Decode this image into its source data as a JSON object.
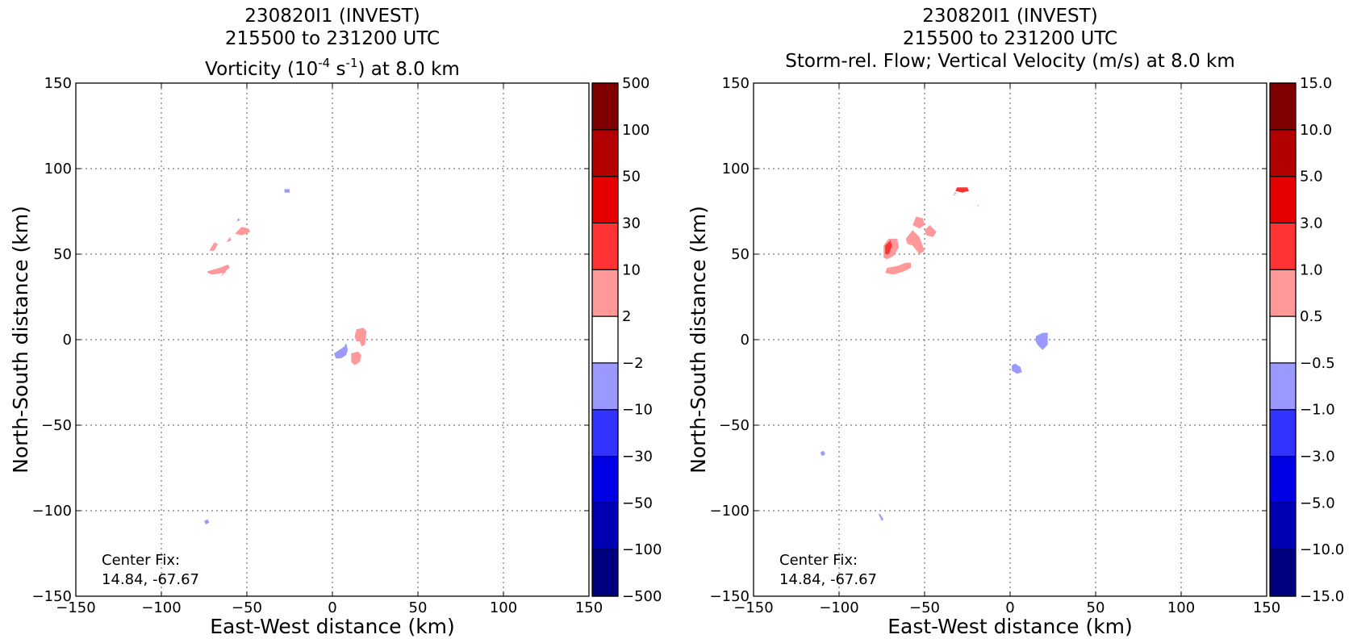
{
  "chart_data": [
    {
      "type": "heatmap",
      "title_lines": [
        "230820I1 (INVEST)",
        "215500 to 231200 UTC"
      ],
      "title_var": {
        "pre": "Vorticity (10",
        "exp": "-4",
        "mid": " s",
        "exp2": "-1",
        "post": ") at 8.0 km"
      },
      "xlabel": "East-West distance (km)",
      "ylabel": "North-South distance (km)",
      "xlim": [
        -150,
        150
      ],
      "ylim": [
        -150,
        150
      ],
      "xticks": [
        -150,
        -100,
        -50,
        0,
        50,
        100,
        150
      ],
      "yticks": [
        -150,
        -100,
        -50,
        0,
        50,
        100,
        150
      ],
      "xtick_labels": [
        "−150",
        "−100",
        "−50",
        "0",
        "50",
        "100",
        "150"
      ],
      "ytick_labels": [
        "−150",
        "−100",
        "−50",
        "0",
        "50",
        "100",
        "150"
      ],
      "grid": true,
      "colorbar": {
        "levels": [
          -500,
          -100,
          -50,
          -30,
          -10,
          -2,
          2,
          10,
          30,
          50,
          100,
          500
        ],
        "labels": [
          "−500",
          "−100",
          "−50",
          "−30",
          "−10",
          "−2",
          "2",
          "10",
          "30",
          "50",
          "100",
          "500"
        ],
        "colors": [
          "#00007f",
          "#0000b2",
          "#0000e5",
          "#3333ff",
          "#9999ff",
          "#ffffff",
          "#ff9999",
          "#ff3333",
          "#e50000",
          "#b20000",
          "#7f0000"
        ]
      },
      "annotation": [
        "Center Fix:",
        "14.84, -67.67"
      ],
      "regions": [
        {
          "level": 6,
          "points": [
            [
              -73,
              40
            ],
            [
              -66,
              42
            ],
            [
              -61,
              44
            ],
            [
              -60,
              42
            ],
            [
              -64,
              39
            ],
            [
              -70,
              38
            ],
            [
              -73,
              39
            ]
          ]
        },
        {
          "level": 6,
          "points": [
            [
              -65,
              37
            ],
            [
              -62,
              40
            ],
            [
              -63,
              41
            ]
          ]
        },
        {
          "level": 6,
          "points": [
            [
              -57,
              62
            ],
            [
              -53,
              66
            ],
            [
              -49,
              65
            ],
            [
              -48,
              63
            ],
            [
              -53,
              61
            ]
          ]
        },
        {
          "level": 6,
          "points": [
            [
              -72,
              52
            ],
            [
              -69,
              57
            ],
            [
              -67,
              56
            ],
            [
              -69,
              52
            ]
          ]
        },
        {
          "level": 6,
          "points": [
            [
              -62,
              57
            ],
            [
              -60,
              60
            ],
            [
              -59,
              58
            ]
          ]
        },
        {
          "level": 6,
          "points": [
            [
              13,
              2
            ],
            [
              14,
              6
            ],
            [
              18,
              7
            ],
            [
              20,
              5
            ],
            [
              19,
              -3
            ],
            [
              17,
              -4
            ],
            [
              16,
              -1
            ],
            [
              14,
              -1
            ]
          ]
        },
        {
          "level": 6,
          "points": [
            [
              11,
              -8
            ],
            [
              11,
              -13
            ],
            [
              13,
              -15
            ],
            [
              16,
              -13
            ],
            [
              17,
              -9
            ],
            [
              15,
              -7
            ]
          ]
        },
        {
          "level": 4,
          "points": [
            [
              2,
              -11
            ],
            [
              1,
              -8
            ],
            [
              4,
              -6
            ],
            [
              7,
              -4
            ],
            [
              8,
              -2
            ],
            [
              9,
              -6
            ],
            [
              8,
              -9
            ],
            [
              5,
              -11
            ]
          ]
        },
        {
          "level": 4,
          "points": [
            [
              -28,
              86
            ],
            [
              -28,
              88
            ],
            [
              -25,
              88
            ],
            [
              -25,
              86
            ]
          ]
        },
        {
          "level": 4,
          "points": [
            [
              -56,
              69
            ],
            [
              -55,
              71
            ],
            [
              -54,
              70
            ]
          ]
        },
        {
          "level": 4,
          "points": [
            [
              -75,
              -106
            ],
            [
              -74,
              -108
            ],
            [
              -72,
              -107
            ],
            [
              -73,
              -105
            ]
          ]
        }
      ]
    },
    {
      "type": "heatmap",
      "title_lines": [
        "230820I1 (INVEST)",
        "215500 to 231200 UTC",
        "Storm-rel. Flow; Vertical Velocity (m/s) at 8.0 km"
      ],
      "xlabel": "East-West distance (km)",
      "ylabel": "North-South distance (km)",
      "xlim": [
        -150,
        150
      ],
      "ylim": [
        -150,
        150
      ],
      "xticks": [
        -150,
        -100,
        -50,
        0,
        50,
        100,
        150
      ],
      "yticks": [
        -150,
        -100,
        -50,
        0,
        50,
        100,
        150
      ],
      "xtick_labels": [
        "−150",
        "−100",
        "−50",
        "0",
        "50",
        "100",
        "150"
      ],
      "ytick_labels": [
        "−150",
        "−100",
        "−50",
        "0",
        "50",
        "100",
        "150"
      ],
      "grid": true,
      "colorbar": {
        "levels": [
          -15.0,
          -10.0,
          -5.0,
          -3.0,
          -1.0,
          -0.5,
          0.5,
          1.0,
          3.0,
          5.0,
          10.0,
          15.0
        ],
        "labels": [
          "−15.0",
          "−10.0",
          "−5.0",
          "−3.0",
          "−1.0",
          "−0.5",
          "0.5",
          "1.0",
          "3.0",
          "5.0",
          "10.0",
          "15.0"
        ],
        "colors": [
          "#00007f",
          "#0000b2",
          "#0000e5",
          "#3333ff",
          "#9999ff",
          "#ffffff",
          "#ff9999",
          "#ff3333",
          "#e50000",
          "#b20000",
          "#7f0000"
        ]
      },
      "annotation": [
        "Center Fix:",
        "14.84, -67.67"
      ],
      "regions": [
        {
          "level": 6,
          "points": [
            [
              -74,
              48
            ],
            [
              -74,
              55
            ],
            [
              -71,
              59
            ],
            [
              -66,
              59
            ],
            [
              -65,
              54
            ],
            [
              -68,
              49
            ],
            [
              -72,
              47
            ]
          ]
        },
        {
          "level": 7,
          "points": [
            [
              -73,
              50
            ],
            [
              -73,
              55
            ],
            [
              -70,
              58
            ],
            [
              -69,
              55
            ],
            [
              -71,
              50
            ]
          ]
        },
        {
          "level": 6,
          "points": [
            [
              -73,
              39
            ],
            [
              -72,
              42
            ],
            [
              -66,
              43
            ],
            [
              -61,
              45
            ],
            [
              -58,
              45
            ],
            [
              -58,
              42
            ],
            [
              -62,
              40
            ],
            [
              -68,
              38
            ]
          ]
        },
        {
          "level": 6,
          "points": [
            [
              -61,
              59
            ],
            [
              -57,
              64
            ],
            [
              -53,
              60
            ],
            [
              -50,
              52
            ],
            [
              -53,
              50
            ],
            [
              -57,
              55
            ],
            [
              -60,
              56
            ]
          ]
        },
        {
          "level": 6,
          "points": [
            [
              -57,
              67
            ],
            [
              -55,
              72
            ],
            [
              -51,
              71
            ],
            [
              -50,
              67
            ],
            [
              -53,
              65
            ]
          ]
        },
        {
          "level": 6,
          "points": [
            [
              -50,
              64
            ],
            [
              -47,
              67
            ],
            [
              -43,
              63
            ],
            [
              -45,
              60
            ],
            [
              -49,
              61
            ]
          ]
        },
        {
          "level": 7,
          "points": [
            [
              -32,
              87
            ],
            [
              -31,
              89
            ],
            [
              -25,
              89
            ],
            [
              -24,
              87
            ],
            [
              -28,
              86
            ]
          ]
        },
        {
          "level": 6,
          "points": [
            [
              -33,
              86
            ],
            [
              -32,
              85
            ],
            [
              -31,
              86
            ]
          ]
        },
        {
          "level": 6,
          "points": [
            [
              -19,
              79
            ],
            [
              -19,
              78
            ],
            [
              -18,
              78
            ]
          ]
        },
        {
          "level": 4,
          "points": [
            [
              -33,
              84
            ],
            [
              -33,
              85
            ],
            [
              -32,
              85
            ]
          ]
        },
        {
          "level": 4,
          "points": [
            [
              15,
              -1
            ],
            [
              15,
              2
            ],
            [
              19,
              4
            ],
            [
              22,
              4
            ],
            [
              22,
              -3
            ],
            [
              19,
              -6
            ],
            [
              16,
              -3
            ]
          ]
        },
        {
          "level": 4,
          "points": [
            [
              1,
              -15
            ],
            [
              1,
              -18
            ],
            [
              4,
              -20
            ],
            [
              7,
              -19
            ],
            [
              6,
              -16
            ],
            [
              3,
              -14
            ]
          ]
        },
        {
          "level": 4,
          "points": [
            [
              -111,
              -66
            ],
            [
              -110,
              -68
            ],
            [
              -108,
              -67
            ],
            [
              -109,
              -65
            ]
          ]
        },
        {
          "level": 4,
          "points": [
            [
              -77,
              -102
            ],
            [
              -75,
              -106
            ],
            [
              -74,
              -105
            ],
            [
              -76,
              -102
            ]
          ]
        }
      ]
    }
  ]
}
